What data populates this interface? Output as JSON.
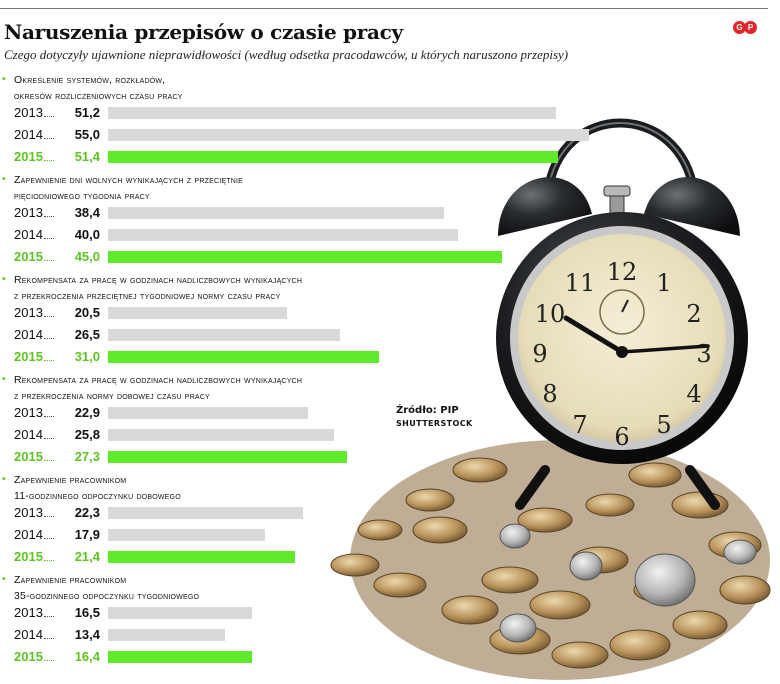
{
  "header": {
    "title": "Naruszenia przepisów o czasie pracy",
    "subtitle": "Czego dotyczyły ujawnione nieprawidłowości (według odsetka pracodawców, u których naruszono przepisy)",
    "logo_letters": [
      "G",
      "P"
    ]
  },
  "source": {
    "label": "Źródło: PIP",
    "credit": "SHUTTERSTOCK"
  },
  "colors": {
    "bar_past": "#d9d9d9",
    "bar_current": "#5fea2e",
    "accent_green": "#5ec421",
    "logo_red": "#e3262b"
  },
  "chart_data": {
    "type": "bar",
    "orientation": "horizontal",
    "grouping": "grouped",
    "series": [
      {
        "name": "2013",
        "color": "#d9d9d9",
        "values": [
          51.2,
          38.4,
          20.5,
          22.9,
          22.3,
          16.5
        ]
      },
      {
        "name": "2014",
        "color": "#d9d9d9",
        "values": [
          55.0,
          40.0,
          26.5,
          25.8,
          17.9,
          13.4
        ]
      },
      {
        "name": "2015",
        "color": "#5fea2e",
        "values": [
          51.4,
          45.0,
          31.0,
          27.3,
          21.4,
          16.4
        ]
      }
    ],
    "value_labels": [
      [
        "51,2",
        "55,0",
        "51,4"
      ],
      [
        "38,4",
        "40,0",
        "45,0"
      ],
      [
        "20,5",
        "26,5",
        "31,0"
      ],
      [
        "22,9",
        "25,8",
        "27,3"
      ],
      [
        "22,3",
        "17,9",
        "21,4"
      ],
      [
        "16,5",
        "13,4",
        "16,4"
      ]
    ],
    "categories": [
      "Określenie systemów, rozkładów,\nokresów rozliczeniowych czasu pracy",
      "Zapewnienie dni wolnych wynikających z przeciętnie\npięciodniowego tygodnia pracy",
      "Rekompensata za pracę w godzinach nadliczbowych wynikających\nz przekroczenia przeciętnej tygodniowej normy czasu pracy",
      "Rekompensata za pracę w godzinach nadliczbowych wynikających\nz przekroczenia normy dobowej czasu pracy",
      "Zapewnienie pracownikom\n11-godzinnego odpoczynku dobowego",
      "Zapewnienie pracownikom\n35-godzinnego odpoczynku tygodniowego"
    ],
    "xlim": [
      0,
      60
    ],
    "grid": false,
    "legend": "none"
  }
}
